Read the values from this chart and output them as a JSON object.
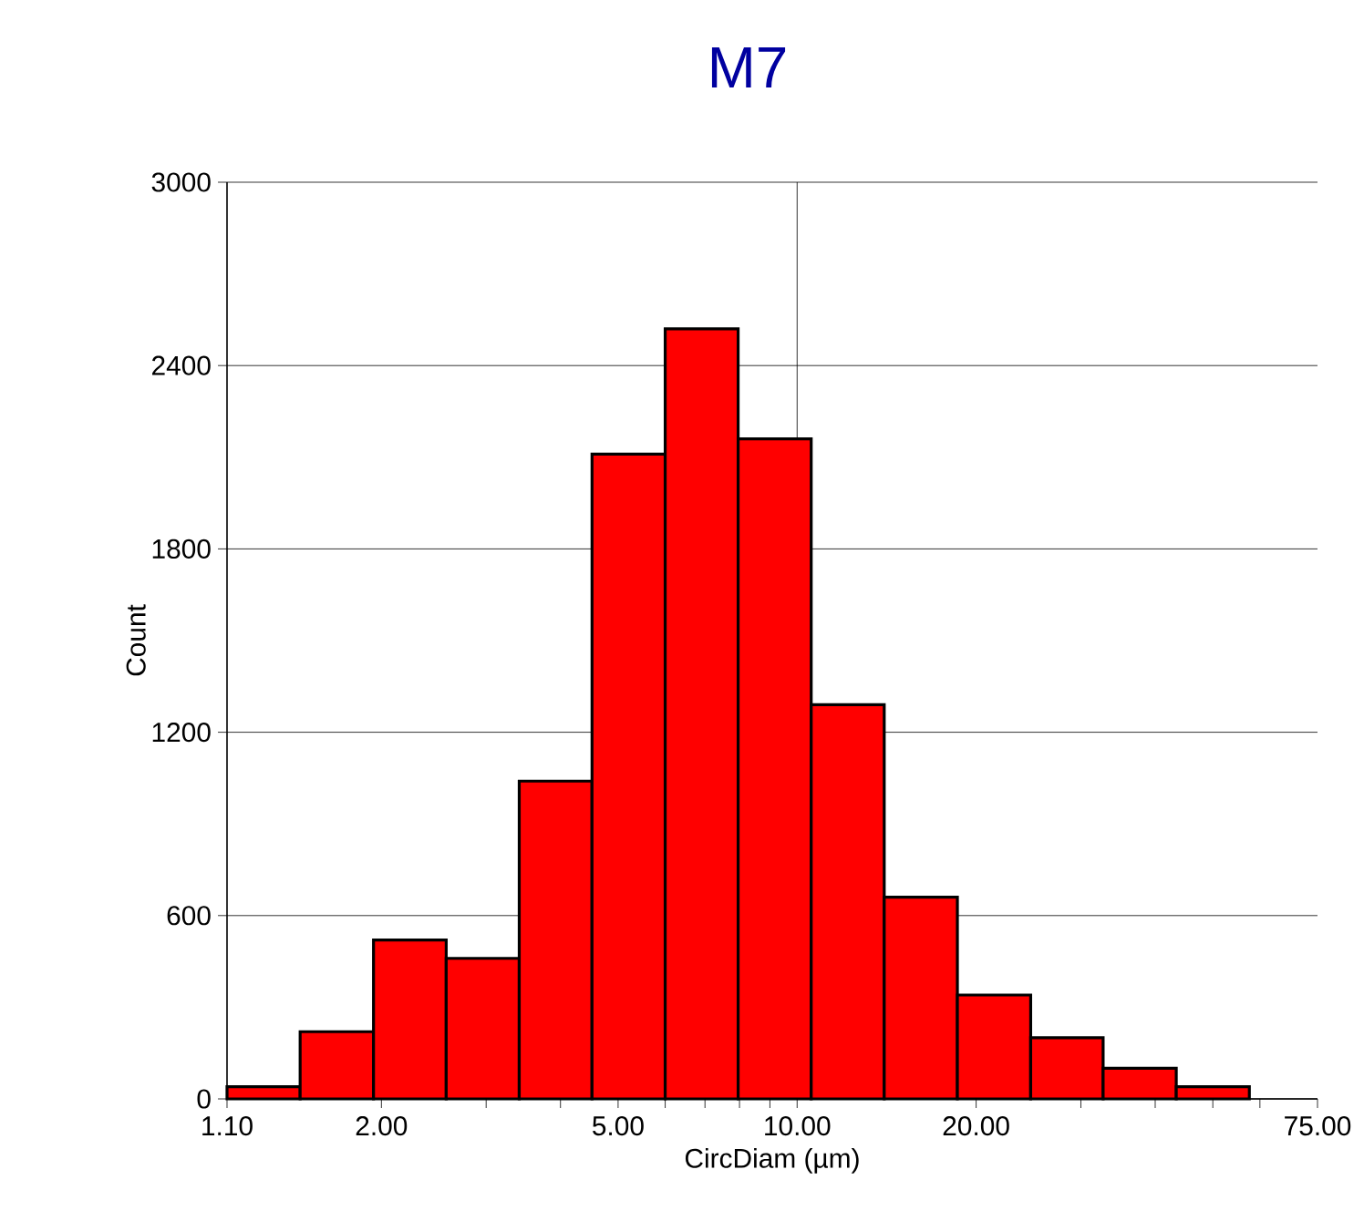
{
  "chart_data": {
    "type": "histogram",
    "title": "M7",
    "xlabel": "CircDiam (µm)",
    "ylabel": "Count",
    "bins": [
      1.1,
      1.46,
      1.94,
      2.57,
      3.41,
      4.52,
      6.0,
      7.96,
      10.56,
      14.01,
      18.6,
      24.7,
      32.7,
      43.4,
      57.6
    ],
    "values": [
      40,
      220,
      520,
      460,
      1040,
      2110,
      2520,
      2160,
      1290,
      660,
      340,
      200,
      100,
      40
    ],
    "color": "#ff0000",
    "log": "x",
    "xlim": [
      1.1,
      75
    ],
    "ylim": [
      0,
      3000
    ],
    "xticks": [
      {
        "value": 1.1,
        "label": "1.10"
      },
      {
        "value": 2,
        "label": "2.00"
      },
      {
        "value": 3,
        "label": null
      },
      {
        "value": 4,
        "label": null
      },
      {
        "value": 5,
        "label": "5.00"
      },
      {
        "value": 6,
        "label": null
      },
      {
        "value": 7,
        "label": null
      },
      {
        "value": 8,
        "label": null
      },
      {
        "value": 9,
        "label": null
      },
      {
        "value": 10,
        "label": "10.00"
      },
      {
        "value": 20,
        "label": "20.00"
      },
      {
        "value": 30,
        "label": null
      },
      {
        "value": 40,
        "label": null
      },
      {
        "value": 50,
        "label": null
      },
      {
        "value": 60,
        "label": null
      },
      {
        "value": 75,
        "label": "75.00"
      }
    ],
    "yticks": [
      0,
      600,
      1200,
      1800,
      2400,
      3000
    ],
    "grid": "y",
    "ref_lines": [
      {
        "axis": "x",
        "value": 10,
        "label": null
      }
    ]
  }
}
